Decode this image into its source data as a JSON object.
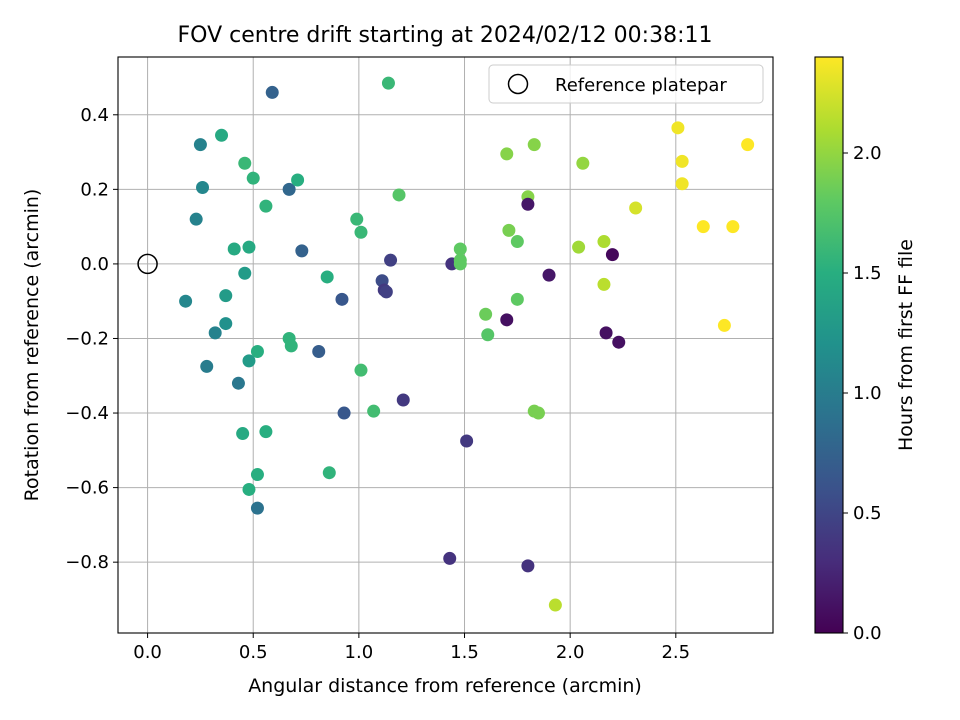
{
  "chart_data": {
    "type": "scatter",
    "title": "FOV centre drift starting at 2024/02/12 00:38:11",
    "xlabel": "Angular distance from reference (arcmin)",
    "ylabel": "Rotation from reference (arcmin)",
    "xlim": [
      -0.14,
      2.96
    ],
    "ylim": [
      -0.99,
      0.555
    ],
    "xticks": [
      0.0,
      0.5,
      1.0,
      1.5,
      2.0,
      2.5
    ],
    "xtick_labels": [
      "0.0",
      "0.5",
      "1.0",
      "1.5",
      "2.0",
      "2.5"
    ],
    "yticks": [
      -0.8,
      -0.6,
      -0.4,
      -0.2,
      0.0,
      0.2,
      0.4
    ],
    "ytick_labels": [
      "−0.8",
      "−0.6",
      "−0.4",
      "−0.2",
      "0.0",
      "0.2",
      "0.4"
    ],
    "grid": true,
    "legend": {
      "position": "top-right",
      "label": "Reference platepar"
    },
    "reference_point": {
      "x": 0.0,
      "y": 0.0
    },
    "colorbar": {
      "label": "Hours from first FF file",
      "colormap": "viridis",
      "range": [
        0.0,
        2.4
      ],
      "ticks": [
        0.0,
        0.5,
        1.0,
        1.5,
        2.0
      ],
      "tick_labels": [
        "0.0",
        "0.5",
        "1.0",
        "1.5",
        "2.0"
      ]
    },
    "points": [
      {
        "x": 0.59,
        "y": 0.46,
        "c": 0.75
      },
      {
        "x": 1.14,
        "y": 0.485,
        "c": 1.6
      },
      {
        "x": 0.25,
        "y": 0.32,
        "c": 1.05
      },
      {
        "x": 0.35,
        "y": 0.345,
        "c": 1.45
      },
      {
        "x": 0.26,
        "y": 0.205,
        "c": 1.1
      },
      {
        "x": 0.23,
        "y": 0.12,
        "c": 1.05
      },
      {
        "x": 0.46,
        "y": 0.27,
        "c": 1.6
      },
      {
        "x": 0.5,
        "y": 0.23,
        "c": 1.55
      },
      {
        "x": 0.67,
        "y": 0.2,
        "c": 0.8
      },
      {
        "x": 0.71,
        "y": 0.225,
        "c": 1.5
      },
      {
        "x": 0.56,
        "y": 0.155,
        "c": 1.55
      },
      {
        "x": 0.41,
        "y": 0.04,
        "c": 1.45
      },
      {
        "x": 0.48,
        "y": 0.045,
        "c": 1.45
      },
      {
        "x": 0.46,
        "y": -0.025,
        "c": 1.3
      },
      {
        "x": 0.73,
        "y": 0.035,
        "c": 0.75
      },
      {
        "x": 0.37,
        "y": -0.085,
        "c": 1.3
      },
      {
        "x": 0.18,
        "y": -0.1,
        "c": 1.1
      },
      {
        "x": 0.37,
        "y": -0.16,
        "c": 1.2
      },
      {
        "x": 0.32,
        "y": -0.185,
        "c": 1.05
      },
      {
        "x": 0.28,
        "y": -0.275,
        "c": 1.0
      },
      {
        "x": 0.43,
        "y": -0.32,
        "c": 0.95
      },
      {
        "x": 0.48,
        "y": -0.26,
        "c": 1.3
      },
      {
        "x": 0.52,
        "y": -0.235,
        "c": 1.5
      },
      {
        "x": 0.67,
        "y": -0.2,
        "c": 1.55
      },
      {
        "x": 0.68,
        "y": -0.22,
        "c": 1.55
      },
      {
        "x": 0.81,
        "y": -0.235,
        "c": 0.7
      },
      {
        "x": 0.85,
        "y": -0.035,
        "c": 1.5
      },
      {
        "x": 0.92,
        "y": -0.095,
        "c": 0.65
      },
      {
        "x": 0.99,
        "y": 0.12,
        "c": 1.6
      },
      {
        "x": 1.01,
        "y": 0.085,
        "c": 1.6
      },
      {
        "x": 1.15,
        "y": 0.01,
        "c": 0.45
      },
      {
        "x": 1.11,
        "y": -0.045,
        "c": 0.55
      },
      {
        "x": 1.12,
        "y": -0.07,
        "c": 0.4
      },
      {
        "x": 1.13,
        "y": -0.075,
        "c": 0.45
      },
      {
        "x": 1.19,
        "y": 0.185,
        "c": 1.75
      },
      {
        "x": 1.01,
        "y": -0.285,
        "c": 1.65
      },
      {
        "x": 1.07,
        "y": -0.395,
        "c": 1.65
      },
      {
        "x": 1.21,
        "y": -0.365,
        "c": 0.4
      },
      {
        "x": 0.93,
        "y": -0.4,
        "c": 0.65
      },
      {
        "x": 0.45,
        "y": -0.455,
        "c": 1.45
      },
      {
        "x": 0.56,
        "y": -0.45,
        "c": 1.5
      },
      {
        "x": 0.52,
        "y": -0.565,
        "c": 1.5
      },
      {
        "x": 0.48,
        "y": -0.605,
        "c": 1.5
      },
      {
        "x": 0.52,
        "y": -0.655,
        "c": 0.9
      },
      {
        "x": 0.86,
        "y": -0.56,
        "c": 1.55
      },
      {
        "x": 1.44,
        "y": 0.0,
        "c": 0.35
      },
      {
        "x": 1.48,
        "y": 0.04,
        "c": 1.8
      },
      {
        "x": 1.48,
        "y": 0.01,
        "c": 1.8
      },
      {
        "x": 1.48,
        "y": 0.0,
        "c": 1.8
      },
      {
        "x": 1.51,
        "y": -0.475,
        "c": 0.4
      },
      {
        "x": 1.43,
        "y": -0.79,
        "c": 0.35
      },
      {
        "x": 1.6,
        "y": -0.135,
        "c": 1.85
      },
      {
        "x": 1.61,
        "y": -0.19,
        "c": 1.75
      },
      {
        "x": 1.7,
        "y": -0.15,
        "c": 0.1
      },
      {
        "x": 1.7,
        "y": 0.295,
        "c": 1.95
      },
      {
        "x": 1.71,
        "y": 0.09,
        "c": 1.9
      },
      {
        "x": 1.75,
        "y": 0.06,
        "c": 1.8
      },
      {
        "x": 1.75,
        "y": -0.095,
        "c": 1.8
      },
      {
        "x": 1.8,
        "y": 0.18,
        "c": 1.95
      },
      {
        "x": 1.8,
        "y": 0.16,
        "c": 0.15
      },
      {
        "x": 1.83,
        "y": 0.32,
        "c": 1.95
      },
      {
        "x": 1.83,
        "y": -0.395,
        "c": 1.9
      },
      {
        "x": 1.85,
        "y": -0.4,
        "c": 1.9
      },
      {
        "x": 1.9,
        "y": -0.03,
        "c": 0.15
      },
      {
        "x": 1.8,
        "y": -0.81,
        "c": 0.35
      },
      {
        "x": 1.93,
        "y": -0.915,
        "c": 2.15
      },
      {
        "x": 2.04,
        "y": 0.045,
        "c": 2.05
      },
      {
        "x": 2.06,
        "y": 0.27,
        "c": 2.0
      },
      {
        "x": 2.16,
        "y": 0.06,
        "c": 2.1
      },
      {
        "x": 2.16,
        "y": -0.055,
        "c": 2.15
      },
      {
        "x": 2.17,
        "y": -0.185,
        "c": 0.1
      },
      {
        "x": 2.2,
        "y": 0.025,
        "c": 0.05
      },
      {
        "x": 2.23,
        "y": -0.21,
        "c": 0.1
      },
      {
        "x": 2.31,
        "y": 0.15,
        "c": 2.25
      },
      {
        "x": 2.51,
        "y": 0.365,
        "c": 2.35
      },
      {
        "x": 2.53,
        "y": 0.275,
        "c": 2.35
      },
      {
        "x": 2.53,
        "y": 0.215,
        "c": 2.35
      },
      {
        "x": 2.63,
        "y": 0.1,
        "c": 2.4
      },
      {
        "x": 2.73,
        "y": -0.165,
        "c": 2.4
      },
      {
        "x": 2.77,
        "y": 0.1,
        "c": 2.4
      },
      {
        "x": 2.84,
        "y": 0.32,
        "c": 2.4
      }
    ]
  }
}
